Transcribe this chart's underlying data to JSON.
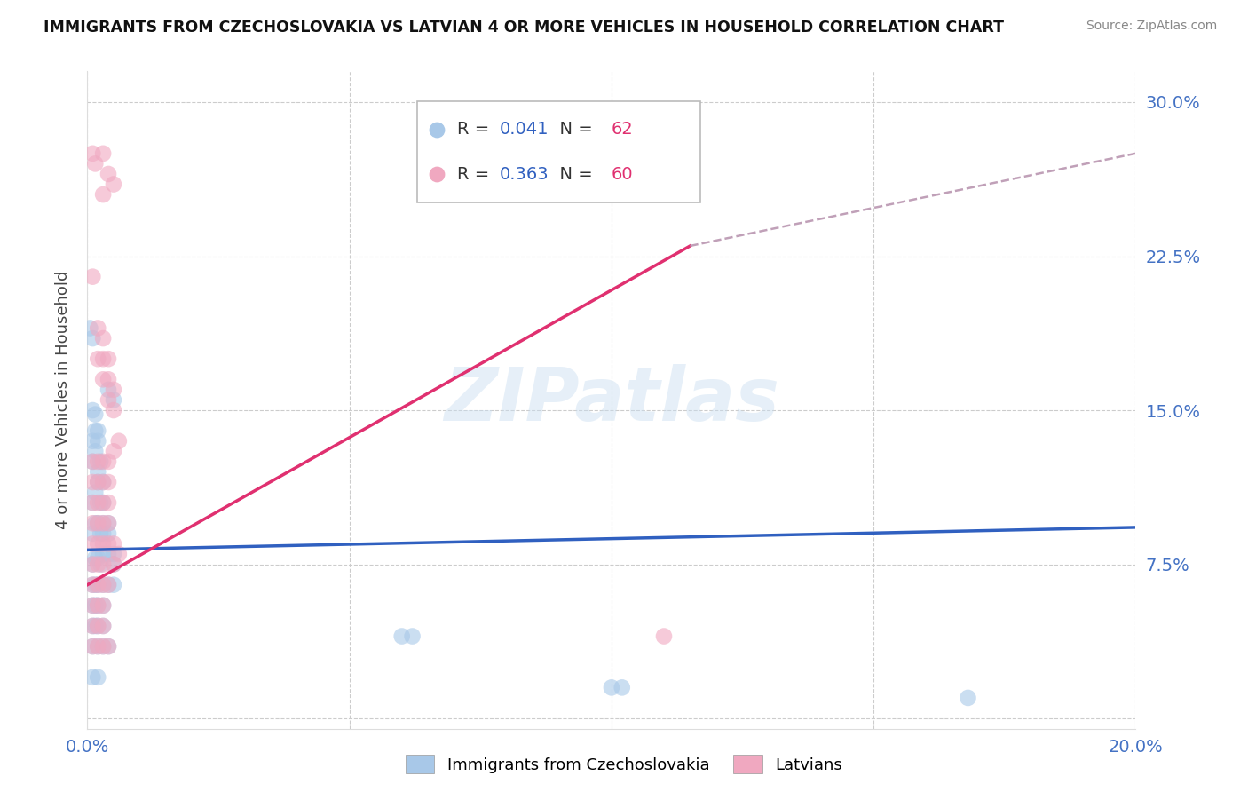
{
  "title": "IMMIGRANTS FROM CZECHOSLOVAKIA VS LATVIAN 4 OR MORE VEHICLES IN HOUSEHOLD CORRELATION CHART",
  "source": "Source: ZipAtlas.com",
  "ylabel": "4 or more Vehicles in Household",
  "xmin": 0.0,
  "xmax": 0.2,
  "ymin": -0.005,
  "ymax": 0.315,
  "yticks": [
    0.0,
    0.075,
    0.15,
    0.225,
    0.3
  ],
  "ytick_labels": [
    "",
    "7.5%",
    "15.0%",
    "22.5%",
    "30.0%"
  ],
  "xticks": [
    0.0,
    0.05,
    0.1,
    0.15,
    0.2
  ],
  "xtick_labels": [
    "0.0%",
    "",
    "",
    "",
    "20.0%"
  ],
  "watermark": "ZIPatlas",
  "blue_color": "#a8c8e8",
  "pink_color": "#f0a8c0",
  "blue_line_color": "#3060c0",
  "pink_line_color": "#e03070",
  "dashed_line_color": "#c0a0b8",
  "blue_scatter": [
    [
      0.0005,
      0.19
    ],
    [
      0.001,
      0.185
    ],
    [
      0.001,
      0.15
    ],
    [
      0.0015,
      0.148
    ],
    [
      0.001,
      0.135
    ],
    [
      0.0015,
      0.14
    ],
    [
      0.001,
      0.125
    ],
    [
      0.0015,
      0.13
    ],
    [
      0.002,
      0.135
    ],
    [
      0.002,
      0.14
    ],
    [
      0.002,
      0.12
    ],
    [
      0.0025,
      0.125
    ],
    [
      0.001,
      0.105
    ],
    [
      0.0015,
      0.11
    ],
    [
      0.002,
      0.115
    ],
    [
      0.0025,
      0.105
    ],
    [
      0.003,
      0.115
    ],
    [
      0.003,
      0.105
    ],
    [
      0.001,
      0.09
    ],
    [
      0.0015,
      0.095
    ],
    [
      0.002,
      0.095
    ],
    [
      0.0025,
      0.09
    ],
    [
      0.003,
      0.095
    ],
    [
      0.003,
      0.09
    ],
    [
      0.004,
      0.095
    ],
    [
      0.004,
      0.09
    ],
    [
      0.001,
      0.075
    ],
    [
      0.0015,
      0.078
    ],
    [
      0.002,
      0.078
    ],
    [
      0.0025,
      0.075
    ],
    [
      0.003,
      0.08
    ],
    [
      0.004,
      0.08
    ],
    [
      0.005,
      0.08
    ],
    [
      0.005,
      0.075
    ],
    [
      0.001,
      0.065
    ],
    [
      0.0015,
      0.065
    ],
    [
      0.002,
      0.065
    ],
    [
      0.003,
      0.065
    ],
    [
      0.004,
      0.065
    ],
    [
      0.005,
      0.065
    ],
    [
      0.001,
      0.055
    ],
    [
      0.0015,
      0.055
    ],
    [
      0.002,
      0.055
    ],
    [
      0.003,
      0.055
    ],
    [
      0.001,
      0.045
    ],
    [
      0.0015,
      0.045
    ],
    [
      0.002,
      0.045
    ],
    [
      0.003,
      0.045
    ],
    [
      0.001,
      0.035
    ],
    [
      0.002,
      0.035
    ],
    [
      0.003,
      0.035
    ],
    [
      0.004,
      0.035
    ],
    [
      0.001,
      0.02
    ],
    [
      0.002,
      0.02
    ],
    [
      0.004,
      0.16
    ],
    [
      0.005,
      0.155
    ],
    [
      0.06,
      0.04
    ],
    [
      0.062,
      0.04
    ],
    [
      0.1,
      0.015
    ],
    [
      0.102,
      0.015
    ],
    [
      0.168,
      0.01
    ]
  ],
  "pink_scatter": [
    [
      0.001,
      0.275
    ],
    [
      0.0015,
      0.27
    ],
    [
      0.003,
      0.275
    ],
    [
      0.004,
      0.265
    ],
    [
      0.005,
      0.26
    ],
    [
      0.003,
      0.255
    ],
    [
      0.001,
      0.215
    ],
    [
      0.002,
      0.19
    ],
    [
      0.003,
      0.185
    ],
    [
      0.002,
      0.175
    ],
    [
      0.003,
      0.175
    ],
    [
      0.004,
      0.175
    ],
    [
      0.003,
      0.165
    ],
    [
      0.004,
      0.165
    ],
    [
      0.005,
      0.16
    ],
    [
      0.004,
      0.155
    ],
    [
      0.005,
      0.15
    ],
    [
      0.006,
      0.135
    ],
    [
      0.005,
      0.13
    ],
    [
      0.001,
      0.125
    ],
    [
      0.002,
      0.125
    ],
    [
      0.003,
      0.125
    ],
    [
      0.004,
      0.125
    ],
    [
      0.001,
      0.115
    ],
    [
      0.002,
      0.115
    ],
    [
      0.003,
      0.115
    ],
    [
      0.004,
      0.115
    ],
    [
      0.001,
      0.105
    ],
    [
      0.002,
      0.105
    ],
    [
      0.003,
      0.105
    ],
    [
      0.004,
      0.105
    ],
    [
      0.001,
      0.095
    ],
    [
      0.002,
      0.095
    ],
    [
      0.003,
      0.095
    ],
    [
      0.004,
      0.095
    ],
    [
      0.001,
      0.085
    ],
    [
      0.002,
      0.085
    ],
    [
      0.003,
      0.085
    ],
    [
      0.004,
      0.085
    ],
    [
      0.005,
      0.085
    ],
    [
      0.006,
      0.08
    ],
    [
      0.001,
      0.075
    ],
    [
      0.002,
      0.075
    ],
    [
      0.003,
      0.075
    ],
    [
      0.005,
      0.075
    ],
    [
      0.001,
      0.065
    ],
    [
      0.002,
      0.065
    ],
    [
      0.003,
      0.065
    ],
    [
      0.004,
      0.065
    ],
    [
      0.001,
      0.055
    ],
    [
      0.002,
      0.055
    ],
    [
      0.003,
      0.055
    ],
    [
      0.001,
      0.045
    ],
    [
      0.002,
      0.045
    ],
    [
      0.003,
      0.045
    ],
    [
      0.001,
      0.035
    ],
    [
      0.002,
      0.035
    ],
    [
      0.003,
      0.035
    ],
    [
      0.004,
      0.035
    ],
    [
      0.11,
      0.04
    ]
  ],
  "blue_line": {
    "x0": 0.0,
    "y0": 0.082,
    "x1": 0.2,
    "y1": 0.093
  },
  "pink_line": {
    "x0": 0.0,
    "y0": 0.065,
    "x1": 0.115,
    "y1": 0.23
  },
  "dashed_line": {
    "x0": 0.115,
    "y0": 0.23,
    "x1": 0.2,
    "y1": 0.275
  }
}
